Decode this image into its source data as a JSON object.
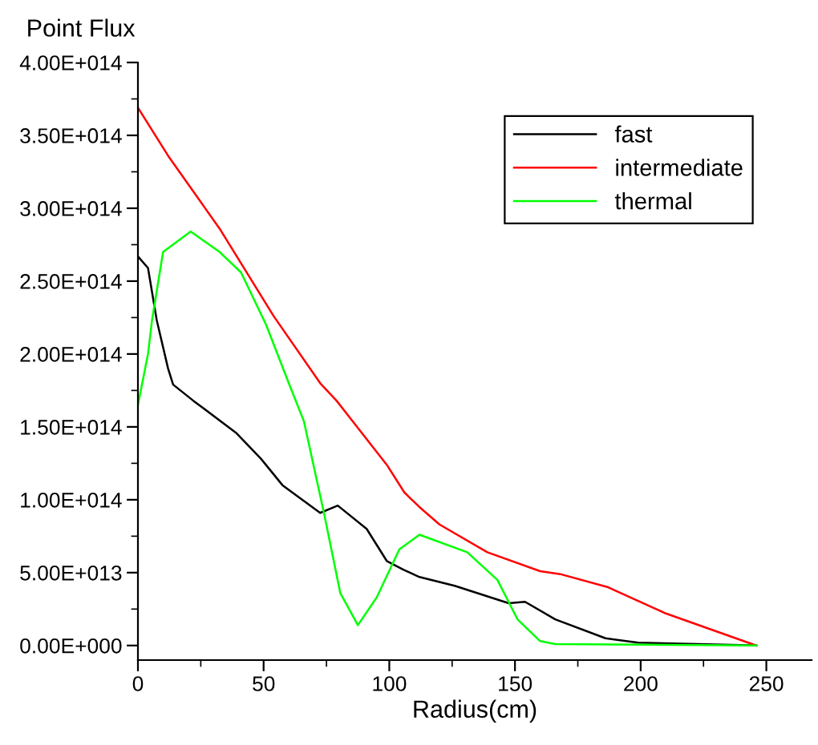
{
  "chart_data": {
    "type": "line",
    "ylabel": "Point Flux",
    "xlabel": "Radius(cm)",
    "xlim": [
      0,
      268
    ],
    "xticks": [
      0,
      50,
      100,
      150,
      200,
      250
    ],
    "ylim": [
      -10000000000000.0,
      400000000000000.0
    ],
    "yticks": [
      {
        "value": 0,
        "label": "0.00E+000"
      },
      {
        "value": 50000000000000.0,
        "label": "5.00E+013"
      },
      {
        "value": 100000000000000.0,
        "label": "1.00E+014"
      },
      {
        "value": 150000000000000.0,
        "label": "1.50E+014"
      },
      {
        "value": 200000000000000.0,
        "label": "2.00E+014"
      },
      {
        "value": 250000000000000.0,
        "label": "2.50E+014"
      },
      {
        "value": 300000000000000.0,
        "label": "3.00E+014"
      },
      {
        "value": 350000000000000.0,
        "label": "3.50E+014"
      },
      {
        "value": 400000000000000.0,
        "label": "4.00E+014"
      }
    ],
    "grid": false,
    "legend": "top right",
    "line_style": "solid",
    "series": [
      {
        "name": "fast",
        "color": "#000000",
        "x": [
          0,
          4,
          7.5,
          12,
          14,
          22,
          39,
          49,
          57.5,
          72.5,
          79.5,
          91,
          99,
          105.6,
          112,
          126,
          147.5,
          154,
          166,
          186,
          199,
          246
        ],
        "values": [
          267000000000000.0,
          259000000000000.0,
          223000000000000.0,
          190000000000000.0,
          179000000000000.0,
          168000000000000.0,
          146000000000000.0,
          128000000000000.0,
          110000000000000.0,
          91000000000000.0,
          96000000000000.0,
          80000000000000.0,
          58000000000000.0,
          52000000000000.0,
          47000000000000.0,
          41000000000000.0,
          29000000000000.0,
          30000000000000.0,
          18000000000000.0,
          5000000000000.0,
          2000000000000.0,
          0
        ]
      },
      {
        "name": "intermediate",
        "color": "#ff0000",
        "x": [
          0,
          12,
          32.5,
          54,
          72.5,
          79,
          99,
          106,
          112,
          120,
          139,
          160,
          168,
          187,
          210,
          246
        ],
        "values": [
          369000000000000.0,
          336000000000000.0,
          286000000000000.0,
          226000000000000.0,
          180000000000000.0,
          168000000000000.0,
          124000000000000.0,
          105000000000000.0,
          95000000000000.0,
          83000000000000.0,
          64000000000000.0,
          51000000000000.0,
          49000000000000.0,
          40000000000000.0,
          22000000000000.0,
          0
        ]
      },
      {
        "name": "thermal",
        "color": "#00ff00",
        "x": [
          0,
          4,
          5.6,
          10,
          21,
          32.5,
          41,
          51,
          60,
          66,
          74,
          80.5,
          87.5,
          95,
          104,
          112,
          131,
          143,
          151,
          160,
          166,
          246
        ],
        "values": [
          165000000000000.0,
          200000000000000.0,
          223000000000000.0,
          270000000000000.0,
          284000000000000.0,
          270000000000000.0,
          256000000000000.0,
          220000000000000.0,
          180000000000000.0,
          154000000000000.0,
          91000000000000.0,
          36000000000000.0,
          14000000000000.0,
          33000000000000.0,
          66000000000000.0,
          76000000000000.0,
          64000000000000.0,
          45000000000000.0,
          18000000000000.0,
          3000000000000.0,
          1000000000000.0,
          0
        ]
      }
    ]
  }
}
